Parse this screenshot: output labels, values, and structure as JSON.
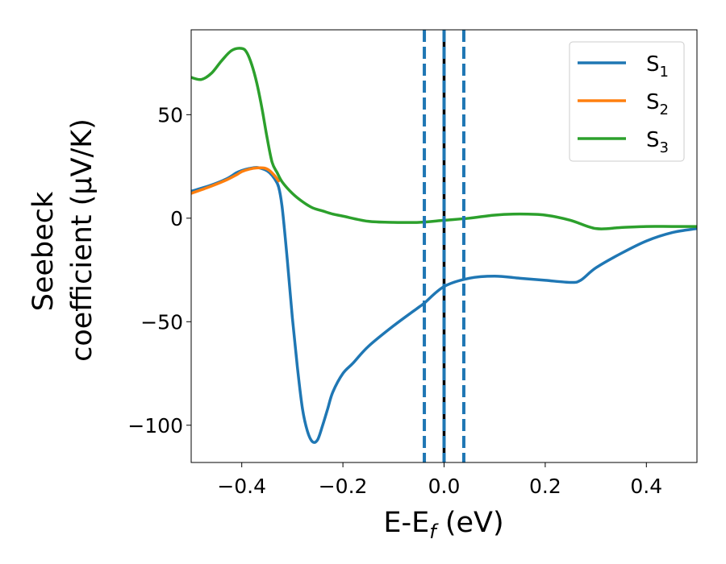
{
  "chart_data": {
    "type": "line",
    "xlabel": "E-E",
    "xlabel_sub": "f",
    "xlabel_unit": " (eV)",
    "ylabel_line1": "Seebeck",
    "ylabel_line2": "coefficient  (μV/K)",
    "xlim": [
      -0.5,
      0.5
    ],
    "ylim": [
      -118,
      91
    ],
    "xticks": [
      -0.4,
      -0.2,
      0.0,
      0.2,
      0.4
    ],
    "xtick_labels": [
      "−0.4",
      "−0.2",
      "0.0",
      "0.2",
      "0.4"
    ],
    "yticks": [
      50,
      0,
      -50,
      -100
    ],
    "ytick_labels": [
      "50",
      "0",
      "−50",
      "−100"
    ],
    "grid": false,
    "legend_position": "top-right",
    "vlines": [
      {
        "x": -0.039,
        "style": "dashed",
        "color": "#1f77b4"
      },
      {
        "x": 0.0,
        "style": "solid",
        "color": "#000000"
      },
      {
        "x": 0.0,
        "style": "dashed",
        "color": "#1f77b4"
      },
      {
        "x": 0.039,
        "style": "dashed",
        "color": "#1f77b4"
      }
    ],
    "series": [
      {
        "name": "S",
        "sub": "1",
        "color": "#1f77b4",
        "x": [
          -0.5,
          -0.46,
          -0.43,
          -0.41,
          -0.4,
          -0.385,
          -0.37,
          -0.355,
          -0.345,
          -0.335,
          -0.327,
          -0.32,
          -0.31,
          -0.3,
          -0.29,
          -0.28,
          -0.27,
          -0.26,
          -0.25,
          -0.24,
          -0.23,
          -0.22,
          -0.2,
          -0.18,
          -0.15,
          -0.1,
          -0.05,
          -0.039,
          0.0,
          0.05,
          0.1,
          0.15,
          0.2,
          0.25,
          0.27,
          0.3,
          0.35,
          0.4,
          0.45,
          0.5
        ],
        "y": [
          13,
          16,
          19,
          22,
          23,
          24,
          24.5,
          23.5,
          22,
          19,
          15,
          5,
          -20,
          -48,
          -72,
          -92,
          -103,
          -108,
          -107,
          -100,
          -92,
          -84,
          -75,
          -70,
          -62,
          -52,
          -43,
          -41,
          -33,
          -29,
          -28,
          -29,
          -30,
          -31,
          -30,
          -24,
          -17,
          -11,
          -7,
          -5
        ]
      },
      {
        "name": "S",
        "sub": "2",
        "color": "#ff7f0e",
        "x": [
          -0.5,
          -0.46,
          -0.43,
          -0.41,
          -0.4,
          -0.385,
          -0.37,
          -0.355,
          -0.345,
          -0.335,
          -0.327
        ],
        "y": [
          12,
          15.5,
          18.5,
          21,
          22.5,
          23.7,
          24.3,
          24.2,
          23,
          20.5,
          18
        ]
      },
      {
        "name": "S",
        "sub": "3",
        "color": "#2ca02c",
        "x": [
          -0.5,
          -0.48,
          -0.46,
          -0.44,
          -0.42,
          -0.4,
          -0.39,
          -0.38,
          -0.37,
          -0.36,
          -0.35,
          -0.34,
          -0.33,
          -0.32,
          -0.3,
          -0.28,
          -0.26,
          -0.24,
          -0.22,
          -0.2,
          -0.15,
          -0.1,
          -0.05,
          0.0,
          0.05,
          0.1,
          0.15,
          0.2,
          0.25,
          0.3,
          0.35,
          0.4,
          0.45,
          0.5
        ],
        "y": [
          68,
          67,
          70,
          76,
          81,
          82,
          80,
          74,
          65,
          53,
          39,
          27,
          22,
          17.5,
          12,
          8,
          5,
          3.5,
          2,
          1,
          -1.5,
          -2,
          -2,
          -1,
          0,
          1.5,
          2,
          1.5,
          -1,
          -5,
          -4.5,
          -4,
          -4,
          -4
        ]
      }
    ]
  }
}
